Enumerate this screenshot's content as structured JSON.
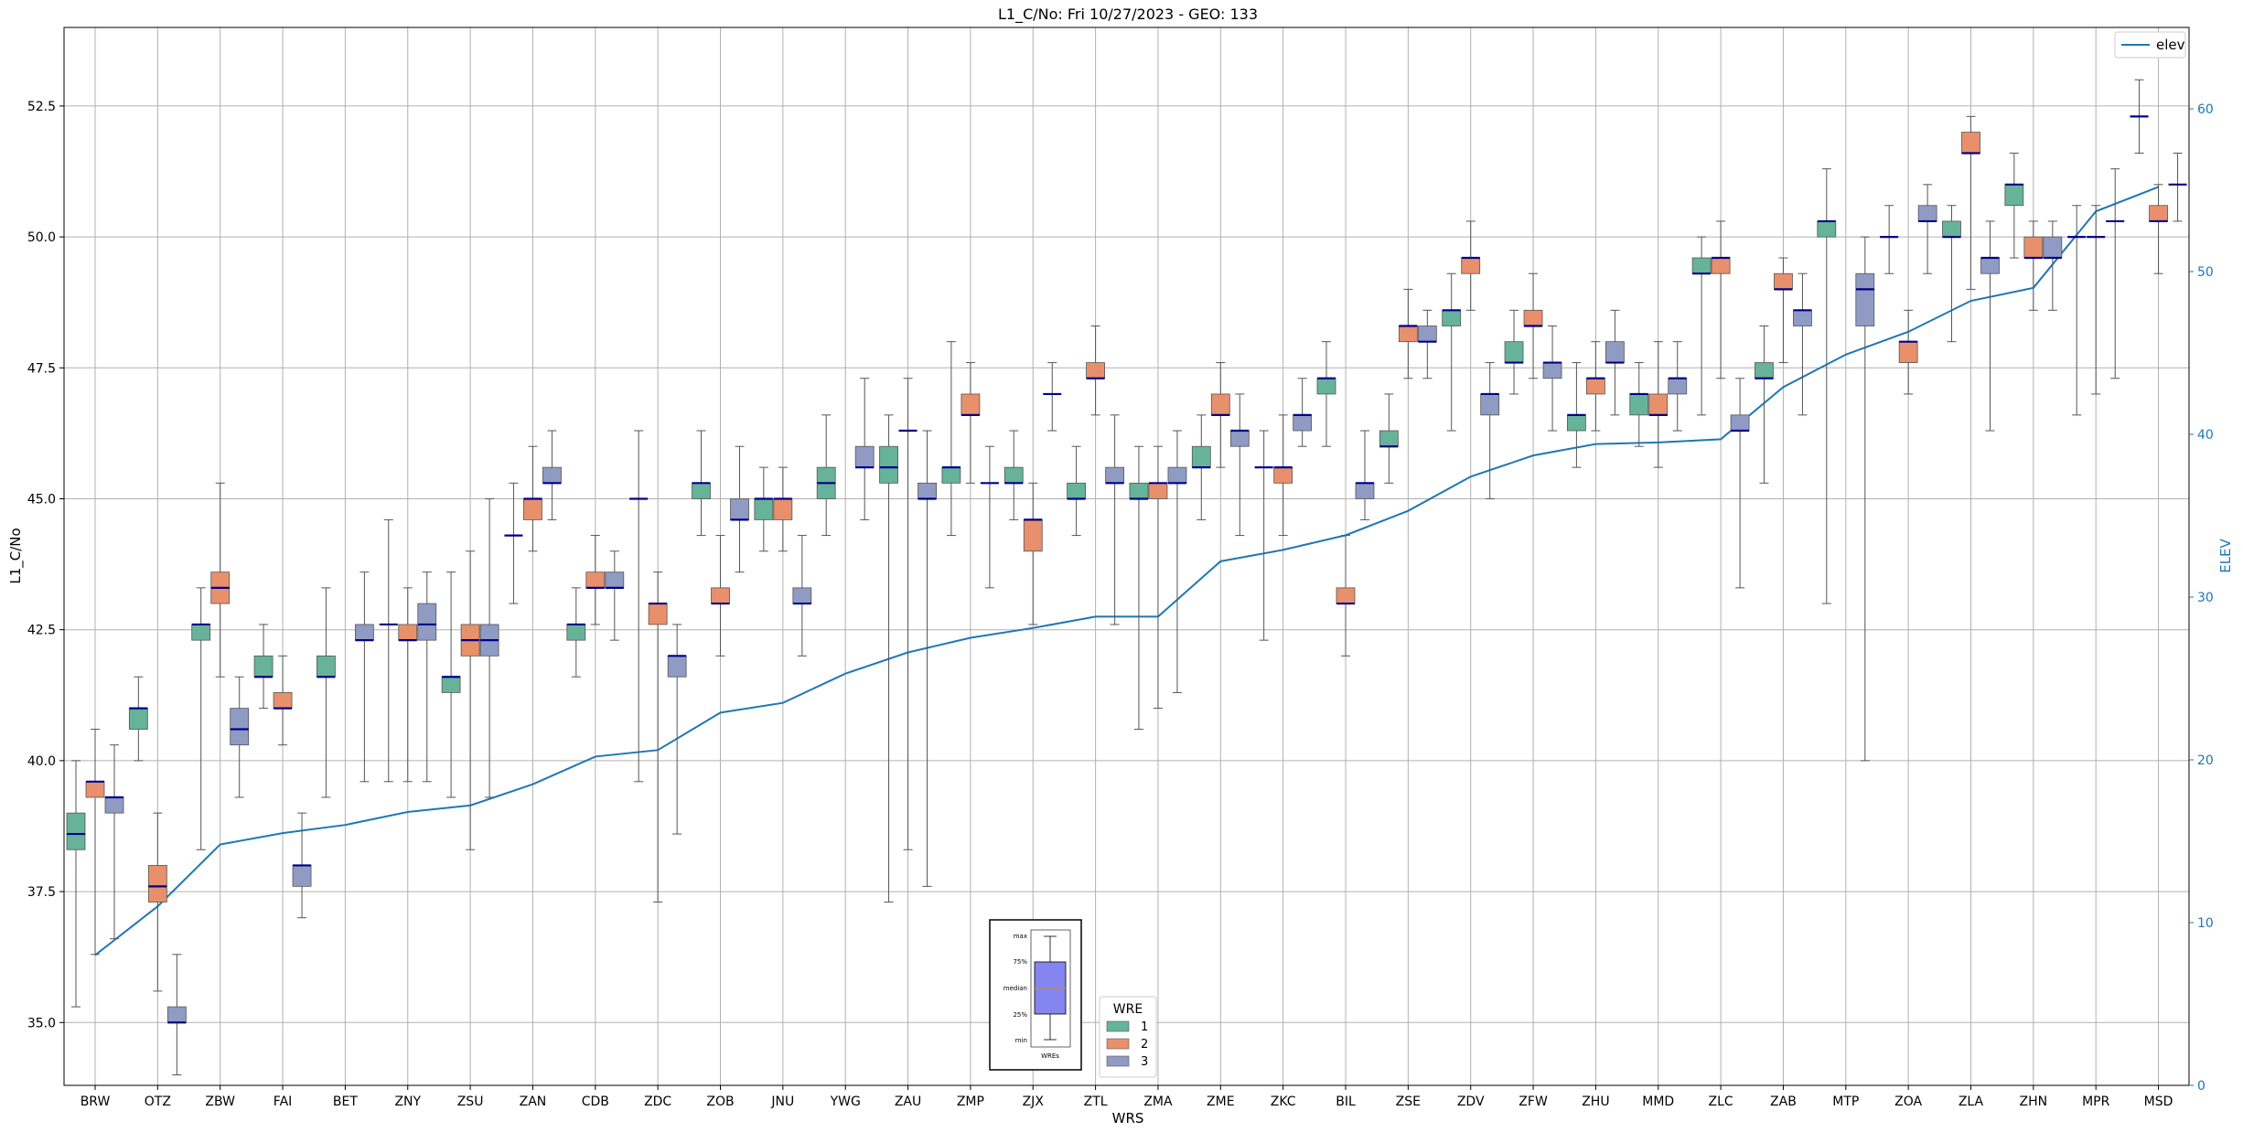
{
  "chart_data": {
    "type": "box",
    "title": "L1_C/No: Fri 10/27/2023 - GEO: 133",
    "xlabel": "WRS",
    "ylabel": "L1_C/No",
    "y2label": "ELEV",
    "ylim": [
      33.8,
      54.0
    ],
    "y2lim": [
      0,
      65
    ],
    "yticks": [
      "35.0",
      "37.5",
      "40.0",
      "42.5",
      "45.0",
      "47.5",
      "50.0",
      "52.5"
    ],
    "y2ticks": [
      "0",
      "10",
      "20",
      "30",
      "40",
      "50",
      "60"
    ],
    "grid": true,
    "categories": [
      "BRW",
      "OTZ",
      "ZBW",
      "FAI",
      "BET",
      "ZNY",
      "ZSU",
      "ZAN",
      "CDB",
      "ZDC",
      "ZOB",
      "JNU",
      "YWG",
      "ZAU",
      "ZMP",
      "ZJX",
      "ZTL",
      "ZMA",
      "ZME",
      "ZKC",
      "BIL",
      "ZSE",
      "ZDV",
      "ZFW",
      "ZHU",
      "MMD",
      "ZLC",
      "ZAB",
      "MTP",
      "ZOA",
      "ZLA",
      "ZHN",
      "MPR",
      "MSD"
    ],
    "wre_legend": {
      "title": "WRE",
      "entries": [
        "1",
        "2",
        "3"
      ]
    },
    "series_colors": {
      "1": "#66b399",
      "2": "#e8906b",
      "3": "#8f9bc3"
    },
    "line_legend": "elev",
    "line_color": "#1f77b4",
    "elev": [
      8,
      11,
      14.8,
      15.5,
      16,
      16.8,
      17.2,
      18.5,
      20.2,
      20.6,
      22.9,
      23.5,
      25.3,
      26.6,
      27.5,
      28.1,
      28.8,
      28.8,
      32.2,
      32.9,
      33.8,
      35.3,
      37.4,
      38.7,
      39.4,
      39.5,
      39.7,
      42.9,
      44.9,
      46.3,
      48.2,
      49,
      53.7,
      55.2
    ],
    "boxes": [
      {
        "cat": "BRW",
        "wre": 1,
        "min": 35.3,
        "q1": 38.3,
        "med": 38.6,
        "q3": 39.0,
        "max": 40.0
      },
      {
        "cat": "BRW",
        "wre": 2,
        "min": 36.3,
        "q1": 39.3,
        "med": 39.6,
        "q3": 39.6,
        "max": 40.6
      },
      {
        "cat": "BRW",
        "wre": 3,
        "min": 36.6,
        "q1": 39.0,
        "med": 39.3,
        "q3": 39.3,
        "max": 40.3
      },
      {
        "cat": "OTZ",
        "wre": 1,
        "min": 40.0,
        "q1": 40.6,
        "med": 41.0,
        "q3": 41.0,
        "max": 41.6
      },
      {
        "cat": "OTZ",
        "wre": 2,
        "min": 35.6,
        "q1": 37.3,
        "med": 37.6,
        "q3": 38.0,
        "max": 39.0
      },
      {
        "cat": "OTZ",
        "wre": 3,
        "min": 34.0,
        "q1": 35.0,
        "med": 35.0,
        "q3": 35.3,
        "max": 36.3
      },
      {
        "cat": "ZBW",
        "wre": 1,
        "min": 38.3,
        "q1": 42.3,
        "med": 42.6,
        "q3": 42.6,
        "max": 43.3
      },
      {
        "cat": "ZBW",
        "wre": 2,
        "min": 41.6,
        "q1": 43.0,
        "med": 43.3,
        "q3": 43.6,
        "max": 45.3
      },
      {
        "cat": "ZBW",
        "wre": 3,
        "min": 39.3,
        "q1": 40.3,
        "med": 40.6,
        "q3": 41.0,
        "max": 41.6
      },
      {
        "cat": "FAI",
        "wre": 1,
        "min": 41.0,
        "q1": 41.6,
        "med": 41.6,
        "q3": 42.0,
        "max": 42.6
      },
      {
        "cat": "FAI",
        "wre": 2,
        "min": 40.3,
        "q1": 41.0,
        "med": 41.0,
        "q3": 41.3,
        "max": 42.0
      },
      {
        "cat": "FAI",
        "wre": 3,
        "min": 37.0,
        "q1": 37.6,
        "med": 38.0,
        "q3": 38.0,
        "max": 39.0
      },
      {
        "cat": "BET",
        "wre": 1,
        "min": 39.3,
        "q1": 41.6,
        "med": 41.6,
        "q3": 42.0,
        "max": 43.3
      },
      {
        "cat": "BET",
        "wre": 2,
        "min": null,
        "q1": null,
        "med": null,
        "q3": null,
        "max": null
      },
      {
        "cat": "BET",
        "wre": 3,
        "min": 39.6,
        "q1": 42.3,
        "med": 42.3,
        "q3": 42.6,
        "max": 43.6
      },
      {
        "cat": "ZNY",
        "wre": 1,
        "min": 39.6,
        "q1": 42.6,
        "med": 42.6,
        "q3": 42.6,
        "max": 44.6
      },
      {
        "cat": "ZNY",
        "wre": 2,
        "min": 39.6,
        "q1": 42.3,
        "med": 42.3,
        "q3": 42.6,
        "max": 43.3
      },
      {
        "cat": "ZNY",
        "wre": 3,
        "min": 39.6,
        "q1": 42.3,
        "med": 42.6,
        "q3": 43.0,
        "max": 43.6
      },
      {
        "cat": "ZSU",
        "wre": 1,
        "min": 39.3,
        "q1": 41.3,
        "med": 41.6,
        "q3": 41.6,
        "max": 43.6
      },
      {
        "cat": "ZSU",
        "wre": 2,
        "min": 38.3,
        "q1": 42.0,
        "med": 42.3,
        "q3": 42.6,
        "max": 44.0
      },
      {
        "cat": "ZSU",
        "wre": 3,
        "min": 39.3,
        "q1": 42.0,
        "med": 42.3,
        "q3": 42.6,
        "max": 45.0
      },
      {
        "cat": "ZAN",
        "wre": 1,
        "min": 43.0,
        "q1": 44.3,
        "med": 44.3,
        "q3": 44.3,
        "max": 45.3
      },
      {
        "cat": "ZAN",
        "wre": 2,
        "min": 44.0,
        "q1": 44.6,
        "med": 45.0,
        "q3": 45.0,
        "max": 46.0
      },
      {
        "cat": "ZAN",
        "wre": 3,
        "min": 44.6,
        "q1": 45.3,
        "med": 45.3,
        "q3": 45.6,
        "max": 46.3
      },
      {
        "cat": "CDB",
        "wre": 1,
        "min": 41.6,
        "q1": 42.3,
        "med": 42.6,
        "q3": 42.6,
        "max": 43.3
      },
      {
        "cat": "CDB",
        "wre": 2,
        "min": 42.6,
        "q1": 43.3,
        "med": 43.3,
        "q3": 43.6,
        "max": 44.3
      },
      {
        "cat": "CDB",
        "wre": 3,
        "min": 42.3,
        "q1": 43.3,
        "med": 43.3,
        "q3": 43.6,
        "max": 44.0
      },
      {
        "cat": "ZDC",
        "wre": 1,
        "min": 39.6,
        "q1": 45.0,
        "med": 45.0,
        "q3": 45.0,
        "max": 46.3
      },
      {
        "cat": "ZDC",
        "wre": 2,
        "min": 37.3,
        "q1": 42.6,
        "med": 43.0,
        "q3": 43.0,
        "max": 43.6
      },
      {
        "cat": "ZDC",
        "wre": 3,
        "min": 38.6,
        "q1": 41.6,
        "med": 42.0,
        "q3": 42.0,
        "max": 42.6
      },
      {
        "cat": "ZOB",
        "wre": 1,
        "min": 44.3,
        "q1": 45.0,
        "med": 45.3,
        "q3": 45.3,
        "max": 46.3
      },
      {
        "cat": "ZOB",
        "wre": 2,
        "min": 42.0,
        "q1": 43.0,
        "med": 43.0,
        "q3": 43.3,
        "max": 44.3
      },
      {
        "cat": "ZOB",
        "wre": 3,
        "min": 43.6,
        "q1": 44.6,
        "med": 44.6,
        "q3": 45.0,
        "max": 46.0
      },
      {
        "cat": "JNU",
        "wre": 1,
        "min": 44.0,
        "q1": 44.6,
        "med": 45.0,
        "q3": 45.0,
        "max": 45.6
      },
      {
        "cat": "JNU",
        "wre": 2,
        "min": 44.0,
        "q1": 44.6,
        "med": 45.0,
        "q3": 45.0,
        "max": 45.6
      },
      {
        "cat": "JNU",
        "wre": 3,
        "min": 42.0,
        "q1": 43.0,
        "med": 43.0,
        "q3": 43.3,
        "max": 44.3
      },
      {
        "cat": "YWG",
        "wre": 1,
        "min": 44.3,
        "q1": 45.0,
        "med": 45.3,
        "q3": 45.6,
        "max": 46.6
      },
      {
        "cat": "YWG",
        "wre": 2,
        "min": null,
        "q1": null,
        "med": null,
        "q3": null,
        "max": null
      },
      {
        "cat": "YWG",
        "wre": 3,
        "min": 44.6,
        "q1": 45.6,
        "med": 45.6,
        "q3": 46.0,
        "max": 47.3
      },
      {
        "cat": "ZAU",
        "wre": 1,
        "min": 37.3,
        "q1": 45.3,
        "med": 45.6,
        "q3": 46.0,
        "max": 46.6
      },
      {
        "cat": "ZAU",
        "wre": 2,
        "min": 38.3,
        "q1": 46.3,
        "med": 46.3,
        "q3": 46.3,
        "max": 47.3
      },
      {
        "cat": "ZAU",
        "wre": 3,
        "min": 37.6,
        "q1": 45.0,
        "med": 45.0,
        "q3": 45.3,
        "max": 46.3
      },
      {
        "cat": "ZMP",
        "wre": 1,
        "min": 44.3,
        "q1": 45.3,
        "med": 45.6,
        "q3": 45.6,
        "max": 48.0
      },
      {
        "cat": "ZMP",
        "wre": 2,
        "min": 45.3,
        "q1": 46.6,
        "med": 46.6,
        "q3": 47.0,
        "max": 47.6
      },
      {
        "cat": "ZMP",
        "wre": 3,
        "min": 43.3,
        "q1": 45.3,
        "med": 45.3,
        "q3": 45.3,
        "max": 46.0
      },
      {
        "cat": "ZJX",
        "wre": 1,
        "min": 44.6,
        "q1": 45.3,
        "med": 45.3,
        "q3": 45.6,
        "max": 46.3
      },
      {
        "cat": "ZJX",
        "wre": 2,
        "min": 42.6,
        "q1": 44.0,
        "med": 44.6,
        "q3": 44.6,
        "max": 45.3
      },
      {
        "cat": "ZJX",
        "wre": 3,
        "min": 46.3,
        "q1": 47.0,
        "med": 47.0,
        "q3": 47.0,
        "max": 47.6
      },
      {
        "cat": "ZTL",
        "wre": 1,
        "min": 44.3,
        "q1": 45.0,
        "med": 45.0,
        "q3": 45.3,
        "max": 46.0
      },
      {
        "cat": "ZTL",
        "wre": 2,
        "min": 46.6,
        "q1": 47.3,
        "med": 47.3,
        "q3": 47.6,
        "max": 48.3
      },
      {
        "cat": "ZTL",
        "wre": 3,
        "min": 42.6,
        "q1": 45.3,
        "med": 45.3,
        "q3": 45.6,
        "max": 46.6
      },
      {
        "cat": "ZMA",
        "wre": 1,
        "min": 40.6,
        "q1": 45.0,
        "med": 45.0,
        "q3": 45.3,
        "max": 46.0
      },
      {
        "cat": "ZMA",
        "wre": 2,
        "min": 41.0,
        "q1": 45.0,
        "med": 45.3,
        "q3": 45.3,
        "max": 46.0
      },
      {
        "cat": "ZMA",
        "wre": 3,
        "min": 41.3,
        "q1": 45.3,
        "med": 45.3,
        "q3": 45.6,
        "max": 46.3
      },
      {
        "cat": "ZME",
        "wre": 1,
        "min": 44.6,
        "q1": 45.6,
        "med": 45.6,
        "q3": 46.0,
        "max": 46.6
      },
      {
        "cat": "ZME",
        "wre": 2,
        "min": 45.6,
        "q1": 46.6,
        "med": 46.6,
        "q3": 47.0,
        "max": 47.6
      },
      {
        "cat": "ZME",
        "wre": 3,
        "min": 44.3,
        "q1": 46.0,
        "med": 46.3,
        "q3": 46.3,
        "max": 47.0
      },
      {
        "cat": "ZKC",
        "wre": 1,
        "min": 42.3,
        "q1": 45.6,
        "med": 45.6,
        "q3": 45.6,
        "max": 46.3
      },
      {
        "cat": "ZKC",
        "wre": 2,
        "min": 44.3,
        "q1": 45.3,
        "med": 45.6,
        "q3": 45.6,
        "max": 46.6
      },
      {
        "cat": "ZKC",
        "wre": 3,
        "min": 46.0,
        "q1": 46.3,
        "med": 46.6,
        "q3": 46.6,
        "max": 47.3
      },
      {
        "cat": "BIL",
        "wre": 1,
        "min": 46.0,
        "q1": 47.0,
        "med": 47.3,
        "q3": 47.3,
        "max": 48.0
      },
      {
        "cat": "BIL",
        "wre": 2,
        "min": 42.0,
        "q1": 43.0,
        "med": 43.0,
        "q3": 43.3,
        "max": 44.3
      },
      {
        "cat": "BIL",
        "wre": 3,
        "min": 44.6,
        "q1": 45.0,
        "med": 45.3,
        "q3": 45.3,
        "max": 46.3
      },
      {
        "cat": "ZSE",
        "wre": 1,
        "min": 45.3,
        "q1": 46.0,
        "med": 46.0,
        "q3": 46.3,
        "max": 47.0
      },
      {
        "cat": "ZSE",
        "wre": 2,
        "min": 47.3,
        "q1": 48.0,
        "med": 48.3,
        "q3": 48.3,
        "max": 49.0
      },
      {
        "cat": "ZSE",
        "wre": 3,
        "min": 47.3,
        "q1": 48.0,
        "med": 48.0,
        "q3": 48.3,
        "max": 48.6
      },
      {
        "cat": "ZDV",
        "wre": 1,
        "min": 46.3,
        "q1": 48.3,
        "med": 48.6,
        "q3": 48.6,
        "max": 49.3
      },
      {
        "cat": "ZDV",
        "wre": 2,
        "min": 48.6,
        "q1": 49.3,
        "med": 49.6,
        "q3": 49.6,
        "max": 50.3
      },
      {
        "cat": "ZDV",
        "wre": 3,
        "min": 45.0,
        "q1": 46.6,
        "med": 47.0,
        "q3": 47.0,
        "max": 47.6
      },
      {
        "cat": "ZFW",
        "wre": 1,
        "min": 47.0,
        "q1": 47.6,
        "med": 47.6,
        "q3": 48.0,
        "max": 48.6
      },
      {
        "cat": "ZFW",
        "wre": 2,
        "min": 47.3,
        "q1": 48.3,
        "med": 48.3,
        "q3": 48.6,
        "max": 49.3
      },
      {
        "cat": "ZFW",
        "wre": 3,
        "min": 46.3,
        "q1": 47.3,
        "med": 47.6,
        "q3": 47.6,
        "max": 48.3
      },
      {
        "cat": "ZHU",
        "wre": 1,
        "min": 45.6,
        "q1": 46.3,
        "med": 46.6,
        "q3": 46.6,
        "max": 47.6
      },
      {
        "cat": "ZHU",
        "wre": 2,
        "min": 46.3,
        "q1": 47.0,
        "med": 47.3,
        "q3": 47.3,
        "max": 48.0
      },
      {
        "cat": "ZHU",
        "wre": 3,
        "min": 46.6,
        "q1": 47.6,
        "med": 47.6,
        "q3": 48.0,
        "max": 48.6
      },
      {
        "cat": "MMD",
        "wre": 1,
        "min": 46.0,
        "q1": 46.6,
        "med": 47.0,
        "q3": 47.0,
        "max": 47.6
      },
      {
        "cat": "MMD",
        "wre": 2,
        "min": 45.6,
        "q1": 46.6,
        "med": 46.6,
        "q3": 47.0,
        "max": 48.0
      },
      {
        "cat": "MMD",
        "wre": 3,
        "min": 46.3,
        "q1": 47.0,
        "med": 47.3,
        "q3": 47.3,
        "max": 48.0
      },
      {
        "cat": "ZLC",
        "wre": 1,
        "min": 46.6,
        "q1": 49.3,
        "med": 49.3,
        "q3": 49.6,
        "max": 50.0
      },
      {
        "cat": "ZLC",
        "wre": 2,
        "min": 47.3,
        "q1": 49.3,
        "med": 49.6,
        "q3": 49.6,
        "max": 50.3
      },
      {
        "cat": "ZLC",
        "wre": 3,
        "min": 43.3,
        "q1": 46.3,
        "med": 46.3,
        "q3": 46.6,
        "max": 47.3
      },
      {
        "cat": "ZAB",
        "wre": 1,
        "min": 45.3,
        "q1": 47.3,
        "med": 47.3,
        "q3": 47.6,
        "max": 48.3
      },
      {
        "cat": "ZAB",
        "wre": 2,
        "min": 47.6,
        "q1": 49.0,
        "med": 49.0,
        "q3": 49.3,
        "max": 49.6
      },
      {
        "cat": "ZAB",
        "wre": 3,
        "min": 46.6,
        "q1": 48.3,
        "med": 48.6,
        "q3": 48.6,
        "max": 49.3
      },
      {
        "cat": "MTP",
        "wre": 1,
        "min": 43.0,
        "q1": 50.0,
        "med": 50.3,
        "q3": 50.3,
        "max": 51.3
      },
      {
        "cat": "MTP",
        "wre": 2,
        "min": null,
        "q1": null,
        "med": null,
        "q3": null,
        "max": null
      },
      {
        "cat": "MTP",
        "wre": 3,
        "min": 40.0,
        "q1": 48.3,
        "med": 49.0,
        "q3": 49.3,
        "max": 50.0
      },
      {
        "cat": "ZOA",
        "wre": 1,
        "min": 49.3,
        "q1": 50.0,
        "med": 50.0,
        "q3": 50.0,
        "max": 50.6
      },
      {
        "cat": "ZOA",
        "wre": 2,
        "min": 47.0,
        "q1": 47.6,
        "med": 48.0,
        "q3": 48.0,
        "max": 48.6
      },
      {
        "cat": "ZOA",
        "wre": 3,
        "min": 49.3,
        "q1": 50.3,
        "med": 50.3,
        "q3": 50.6,
        "max": 51.0
      },
      {
        "cat": "ZLA",
        "wre": 1,
        "min": 48.0,
        "q1": 50.0,
        "med": 50.0,
        "q3": 50.3,
        "max": 50.6
      },
      {
        "cat": "ZLA",
        "wre": 2,
        "min": 49.0,
        "q1": 51.6,
        "med": 51.6,
        "q3": 52.0,
        "max": 52.3
      },
      {
        "cat": "ZLA",
        "wre": 3,
        "min": 46.3,
        "q1": 49.3,
        "med": 49.6,
        "q3": 49.6,
        "max": 50.3
      },
      {
        "cat": "ZHN",
        "wre": 1,
        "min": 49.6,
        "q1": 50.6,
        "med": 51.0,
        "q3": 51.0,
        "max": 51.6
      },
      {
        "cat": "ZHN",
        "wre": 2,
        "min": 48.6,
        "q1": 49.6,
        "med": 49.6,
        "q3": 50.0,
        "max": 50.3
      },
      {
        "cat": "ZHN",
        "wre": 3,
        "min": 48.6,
        "q1": 49.6,
        "med": 49.6,
        "q3": 50.0,
        "max": 50.3
      },
      {
        "cat": "MPR",
        "wre": 1,
        "min": 46.6,
        "q1": 50.0,
        "med": 50.0,
        "q3": 50.0,
        "max": 50.6
      },
      {
        "cat": "MPR",
        "wre": 2,
        "min": 47.0,
        "q1": 50.0,
        "med": 50.0,
        "q3": 50.0,
        "max": 50.6
      },
      {
        "cat": "MPR",
        "wre": 3,
        "min": 47.3,
        "q1": 50.3,
        "med": 50.3,
        "q3": 50.3,
        "max": 51.3
      },
      {
        "cat": "MSD",
        "wre": 1,
        "min": 51.6,
        "q1": 52.3,
        "med": 52.3,
        "q3": 52.3,
        "max": 53.0
      },
      {
        "cat": "MSD",
        "wre": 2,
        "min": 49.3,
        "q1": 50.3,
        "med": 50.3,
        "q3": 50.6,
        "max": 51.0
      },
      {
        "cat": "MSD",
        "wre": 3,
        "min": 50.3,
        "q1": 51.0,
        "med": 51.0,
        "q3": 51.0,
        "max": 51.6
      }
    ],
    "key_labels": {
      "max": "max",
      "q3": "75%",
      "median": "median",
      "q1": "25%",
      "min": "min",
      "xlabel": "WREs"
    }
  }
}
